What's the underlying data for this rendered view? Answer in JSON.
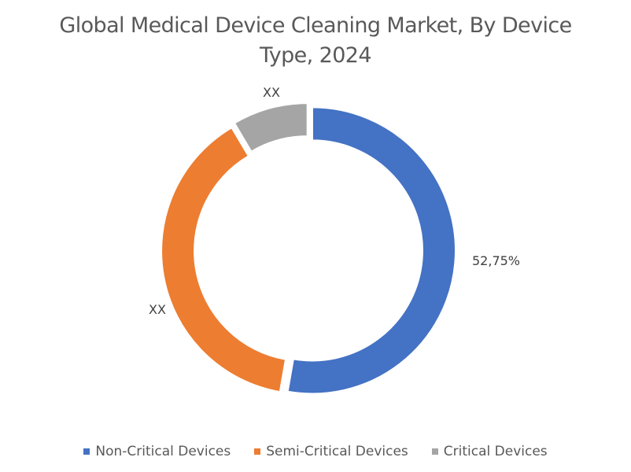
{
  "chart_data": {
    "type": "pie",
    "subtype": "doughnut",
    "title": "Global Medical Device Cleaning Market, By Device Type, 2024",
    "title_lines": [
      "Global Medical Device Cleaning Market, By Device",
      "Type, 2024"
    ],
    "categories": [
      "Non-Critical Devices",
      "Semi-Critical Devices",
      "Critical Devices"
    ],
    "values": [
      52.75,
      38.75,
      8.5
    ],
    "data_labels": [
      "52,75%",
      "XX",
      "XX"
    ],
    "colors": [
      "#4472C4",
      "#ED7D31",
      "#A5A5A5"
    ],
    "legend_position": "bottom"
  },
  "legend": [
    {
      "label": "Non-Critical Devices",
      "color": "#4472C4"
    },
    {
      "label": "Semi-Critical Devices",
      "color": "#ED7D31"
    },
    {
      "label": "Critical Devices",
      "color": "#A5A5A5"
    }
  ]
}
